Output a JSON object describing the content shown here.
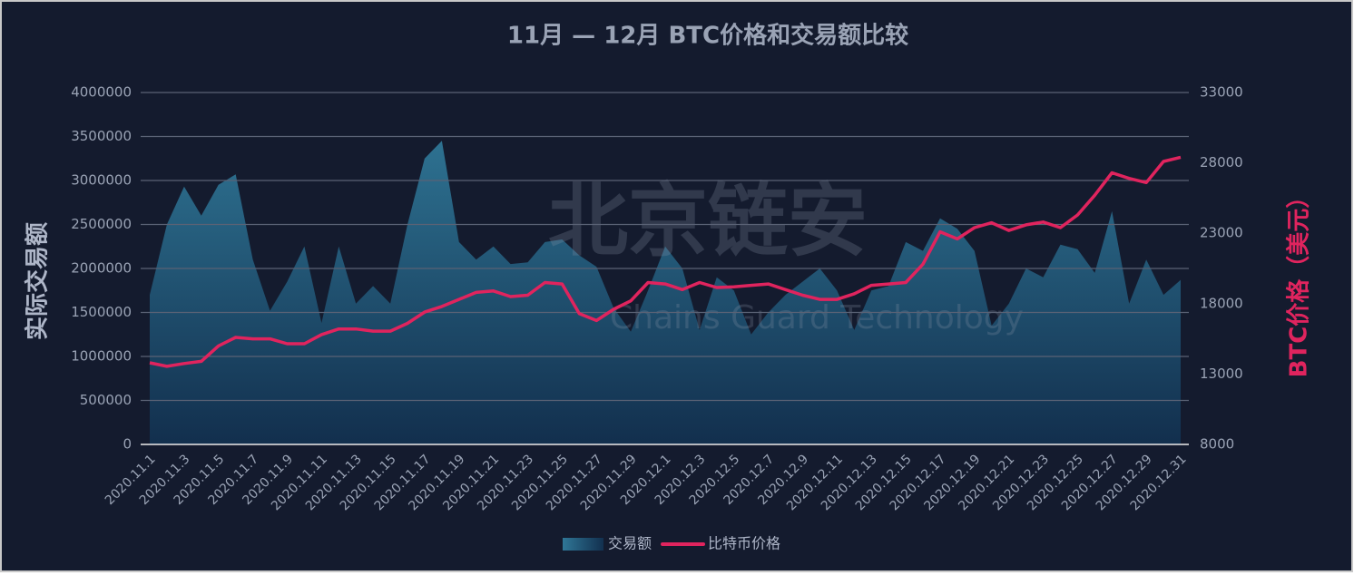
{
  "chart_data": {
    "type": "area-line",
    "title": "11月 — 12月 BTC价格和交易额比较",
    "ylabel": "实际交易额",
    "y2label": "BTC价格（美元）",
    "watermark": "北京链安",
    "watermark_subtitle": "Chains Guard Technology",
    "categories": [
      "2020.11.1",
      null,
      "2020.11.3",
      null,
      "2020.11.5",
      null,
      "2020.11.7",
      null,
      "2020.11.9",
      null,
      "2020.11.11",
      null,
      "2020.11.13",
      null,
      "2020.11.15",
      null,
      "2020.11.17",
      null,
      "2020.11.19",
      null,
      "2020.11.21",
      null,
      "2020.11.23",
      null,
      "2020.11.25",
      null,
      "2020.11.27",
      null,
      "2020.11.29",
      null,
      "2020.12.1",
      null,
      "2020.12.3",
      null,
      "2020.12.5",
      null,
      "2020.12.7",
      null,
      "2020.12.9",
      null,
      "2020.12.11",
      null,
      "2020.12.13",
      null,
      "2020.12.15",
      null,
      "2020.12.17",
      null,
      "2020.12.19",
      null,
      "2020.12.21",
      null,
      "2020.12.23",
      null,
      "2020.12.25",
      null,
      "2020.12.27",
      null,
      "2020.12.29",
      null,
      "2020.12.31"
    ],
    "series": [
      {
        "name": "交易额",
        "color": "#2b6f92",
        "values": [
          1700000,
          2500000,
          2930000,
          2600000,
          2950000,
          3070000,
          2100000,
          1520000,
          1850000,
          2250000,
          1380000,
          2250000,
          1600000,
          1800000,
          1600000,
          2500000,
          3250000,
          3450000,
          2300000,
          2100000,
          2250000,
          2050000,
          2070000,
          2300000,
          2330000,
          2150000,
          2020000,
          1550000,
          1280000,
          1750000,
          2250000,
          2000000,
          1300000,
          1900000,
          1750000,
          1250000,
          1500000,
          1700000,
          1850000,
          2000000,
          1750000,
          1300000,
          1750000,
          1800000,
          2300000,
          2200000,
          2570000,
          2450000,
          2200000,
          1350000,
          1600000,
          2000000,
          1900000,
          2270000,
          2220000,
          1950000,
          2650000,
          1600000,
          2100000,
          1700000,
          1870000
        ]
      },
      {
        "name": "比特币价格",
        "color": "#e0245e",
        "axis": "y2",
        "values": [
          13800,
          13550,
          13750,
          13900,
          15000,
          15600,
          15500,
          15500,
          15150,
          15150,
          15800,
          16200,
          16200,
          16050,
          16050,
          16600,
          17400,
          17800,
          18300,
          18800,
          18900,
          18500,
          18600,
          19500,
          19400,
          17300,
          16800,
          17600,
          18200,
          19500,
          19400,
          19000,
          19500,
          19150,
          19200,
          19300,
          19400,
          19000,
          18600,
          18300,
          18300,
          18700,
          19300,
          19400,
          19500,
          20800,
          23100,
          22600,
          23400,
          23750,
          23200,
          23600,
          23800,
          23400,
          24300,
          25700,
          27300,
          26900,
          26600,
          28100,
          28400
        ]
      }
    ],
    "ylim": [
      0,
      4000000
    ],
    "yticks": [
      0,
      500000,
      1000000,
      1500000,
      2000000,
      2500000,
      3000000,
      3500000,
      4000000
    ],
    "y2lim": [
      8000,
      33000
    ],
    "y2ticks": [
      8000,
      13000,
      18000,
      23000,
      28000,
      33000
    ],
    "grid": true,
    "legend": "bottom"
  }
}
